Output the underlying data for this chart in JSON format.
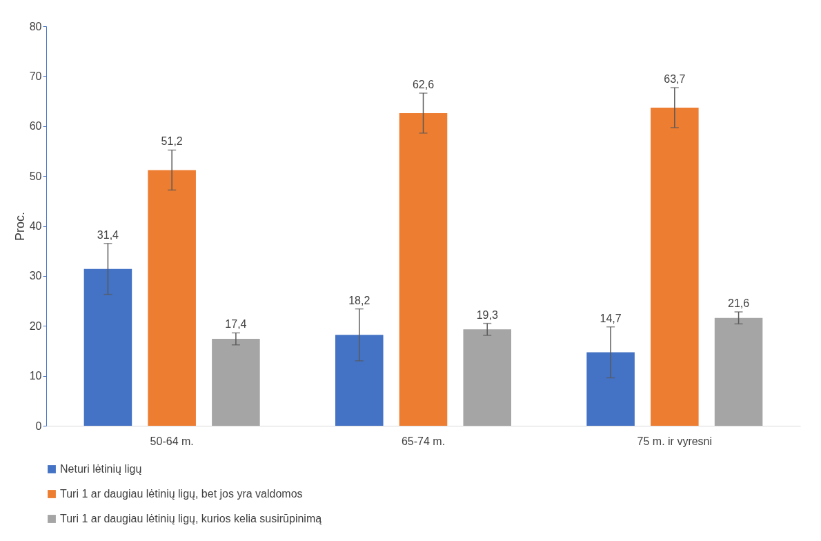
{
  "chart_data": {
    "type": "bar",
    "ylabel": "Proc.",
    "categories": [
      "50-64 m.",
      "65-74 m.",
      "75 m. ir vyresni"
    ],
    "series": [
      {
        "name": "Neturi lėtinių ligų",
        "color": "#4472c4",
        "values": [
          31.4,
          18.2,
          14.7
        ],
        "errors": [
          5.1,
          5.2,
          5.1
        ],
        "value_labels": [
          "31,4",
          "18,2",
          "14,7"
        ]
      },
      {
        "name": "Turi 1 ar daugiau lėtinių ligų, bet jos yra valdomos",
        "color": "#ed7d31",
        "values": [
          51.2,
          62.6,
          63.7
        ],
        "errors": [
          4,
          4,
          4
        ],
        "value_labels": [
          "51,2",
          "62,6",
          "63,7"
        ]
      },
      {
        "name": "Turi 1 ar daugiau lėtinių ligų, kurios kelia susirūpinimą",
        "color": "#a5a5a5",
        "values": [
          17.4,
          19.3,
          21.6
        ],
        "errors": [
          1.2,
          1.2,
          1.2
        ],
        "value_labels": [
          "17,4",
          "19,3",
          "21,6"
        ]
      }
    ],
    "ylim": [
      0,
      80
    ],
    "yticks": [
      0,
      10,
      20,
      30,
      40,
      50,
      60,
      70,
      80
    ],
    "grid": false,
    "legend": "bottom"
  }
}
